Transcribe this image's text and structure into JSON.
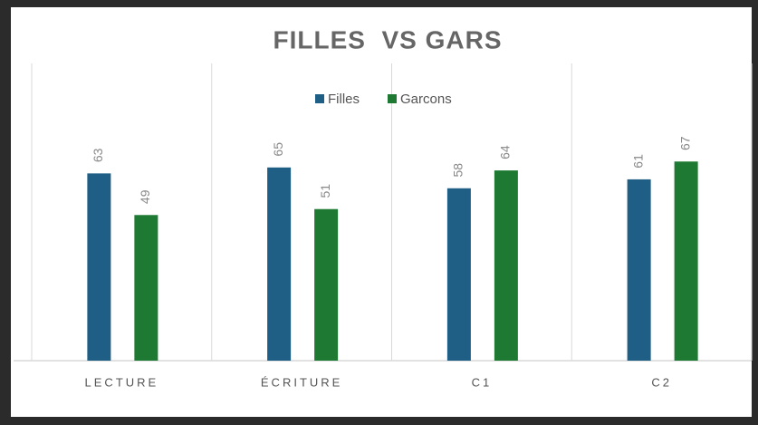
{
  "chart_data": {
    "type": "bar",
    "title": "FILLES  VS GARS",
    "categories": [
      "LECTURE",
      "ÉCRITURE",
      "C1",
      "C2"
    ],
    "series": [
      {
        "name": "Filles",
        "color": "#1f5f86",
        "values": [
          63,
          65,
          58,
          61
        ]
      },
      {
        "name": "Garcons",
        "color": "#1e7a32",
        "values": [
          49,
          51,
          64,
          67
        ]
      }
    ],
    "ylim": [
      0,
      100
    ],
    "legend": "top"
  }
}
